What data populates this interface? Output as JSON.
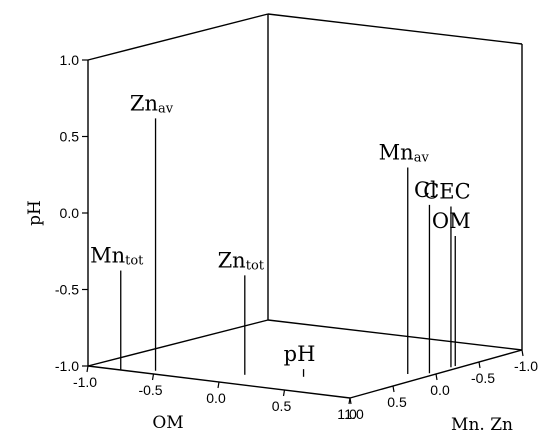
{
  "chart_data": {
    "type": "scatter3d",
    "title": "",
    "axes": {
      "vertical": {
        "label": "pH",
        "ticks": [
          "1.0",
          "0.5",
          "0.0",
          "-0.5",
          "-1.0"
        ],
        "range": [
          -1.0,
          1.0
        ]
      },
      "left_floor": {
        "label": "OM",
        "ticks": [
          "-1.0",
          "-0.5",
          "0.0",
          "0.5",
          "1.0"
        ],
        "range": [
          -1.0,
          1.0
        ]
      },
      "right_floor": {
        "label": "Mn. Zn",
        "ticks": [
          "1.0",
          "0.5",
          "0.0",
          "-0.5",
          "-1.0"
        ],
        "range": [
          -1.0,
          1.0
        ]
      }
    },
    "grid": false,
    "points": [
      {
        "name": "Zn",
        "sub": "av",
        "om": -0.55,
        "mnzn": 0.9,
        "ph": 0.65
      },
      {
        "name": "Mn",
        "sub": "tot",
        "om": -0.75,
        "mnzn": 1.0,
        "ph": -0.35
      },
      {
        "name": "Zn",
        "sub": "tot",
        "om": 0.0,
        "mnzn": 0.7,
        "ph": -0.35
      },
      {
        "name": "pH",
        "sub": "",
        "om": 0.35,
        "mnzn": 0.55,
        "ph": -0.95
      },
      {
        "name": "Mn",
        "sub": "av",
        "om": 0.85,
        "mnzn": 0.1,
        "ph": 0.35
      },
      {
        "name": "Cl",
        "sub": "",
        "om": 0.95,
        "mnzn": 0.0,
        "ph": 0.1
      },
      {
        "name": "CEC",
        "sub": "",
        "om": 0.95,
        "mnzn": -0.25,
        "ph": 0.05
      },
      {
        "name": "OM",
        "sub": "",
        "om": 0.95,
        "mnzn": -0.3,
        "ph": -0.15
      }
    ]
  }
}
